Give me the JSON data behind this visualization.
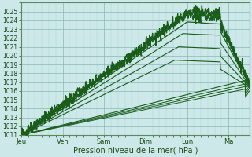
{
  "bg_color": "#cce8e8",
  "grid_color_minor": "#aad0d0",
  "grid_color_major": "#88b8b8",
  "line_color": "#1a5c1a",
  "xlabel": "Pression niveau de la mer( hPa )",
  "x_tick_labels": [
    "Jeu",
    "Ven",
    "Sam",
    "Dim",
    "Lun",
    "Ma"
  ],
  "ylim": [
    1011,
    1026
  ],
  "yticks": [
    1011,
    1012,
    1013,
    1014,
    1015,
    1016,
    1017,
    1018,
    1019,
    1020,
    1021,
    1022,
    1023,
    1024,
    1025
  ],
  "xlim": [
    0,
    5.5
  ],
  "day_ticks": [
    0,
    1,
    2,
    3,
    4,
    5
  ],
  "num_days": 5.5
}
